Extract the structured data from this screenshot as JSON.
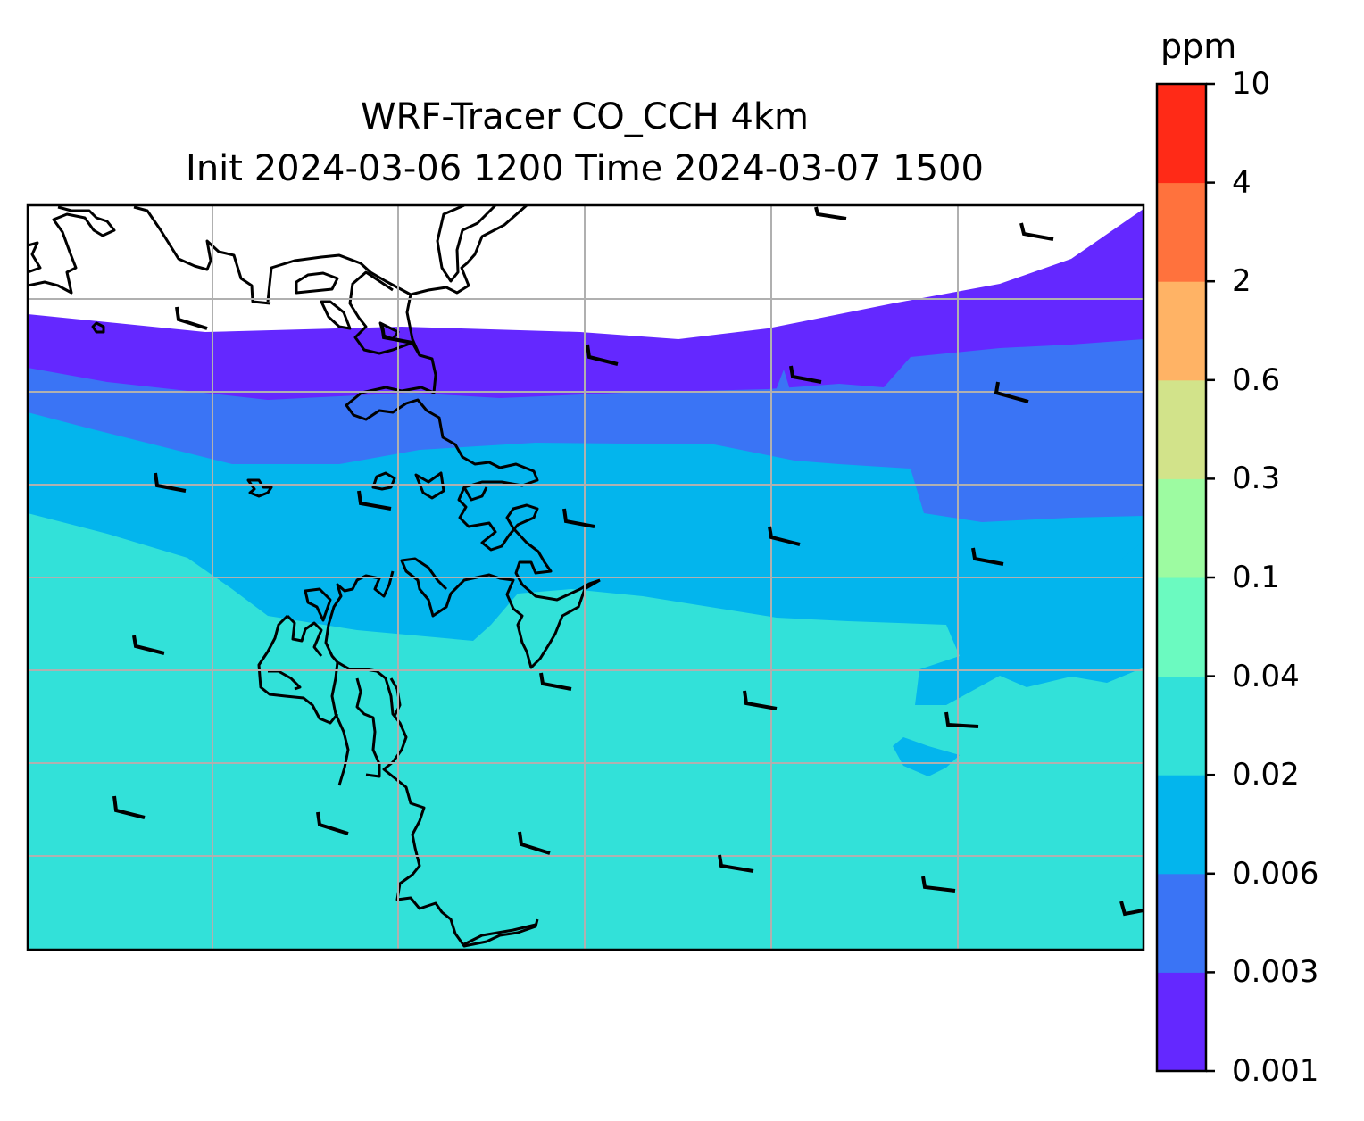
{
  "title": {
    "line1": "WRF-Tracer CO_CCH 4km",
    "line2": "Init 2024-03-06 1200 Time 2024-03-07 1500"
  },
  "colorbar": {
    "unit": "ppm",
    "ticks": [
      "0.001",
      "0.003",
      "0.006",
      "0.02",
      "0.04",
      "0.1",
      "0.3",
      "0.6",
      "2",
      "4",
      "10"
    ],
    "colors": [
      "#6428ff",
      "#3a74f5",
      "#03b5ed",
      "#32e1d9",
      "#6bfac0",
      "#9dfba1",
      "#d2e38a",
      "#ffb365",
      "#ff723d",
      "#ff2a17"
    ]
  },
  "map": {
    "fields": [
      {
        "level": "0.001-0.003",
        "color": "#6428ff"
      },
      {
        "level": "0.003-0.006",
        "color": "#3a74f5"
      },
      {
        "level": "0.006-0.02",
        "color": "#03b5ed"
      },
      {
        "level": "0.02-0.04",
        "color": "#32e1d9"
      }
    ],
    "gridlines": true,
    "wind_barbs": true,
    "coastlines": true
  }
}
